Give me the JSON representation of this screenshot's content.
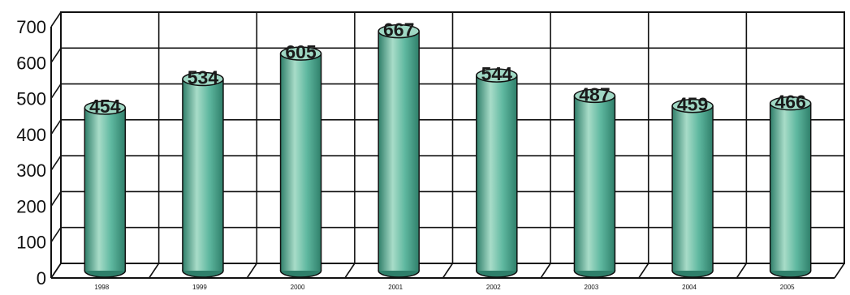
{
  "chart_data": {
    "type": "bar",
    "categories": [
      "1998",
      "1999",
      "2000",
      "2001",
      "2002",
      "2003",
      "2004",
      "2005"
    ],
    "values": [
      454,
      534,
      605,
      667,
      544,
      487,
      459,
      466
    ],
    "ylim": [
      0,
      700
    ],
    "yticks": [
      0,
      100,
      200,
      300,
      400,
      500,
      600,
      700
    ],
    "grid": true,
    "style": "3d-cylinder",
    "colors": {
      "bar_body": "#5fb8a0",
      "bar_light": "#a8dcc8",
      "bar_dark": "#2f7f6a",
      "bar_top": "#9fd8c4",
      "grid": "#111111"
    }
  }
}
